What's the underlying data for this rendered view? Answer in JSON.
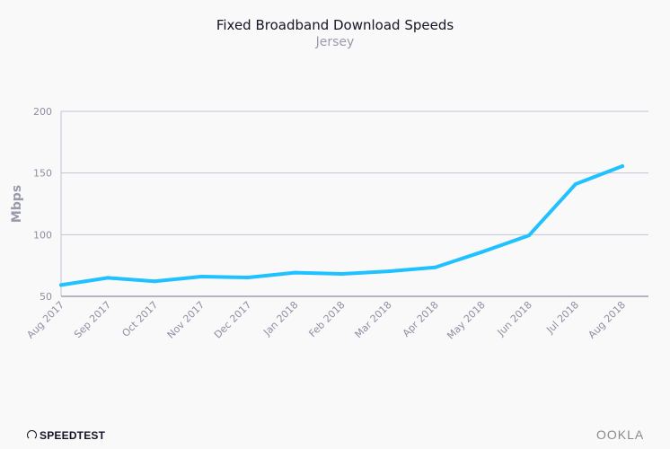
{
  "chart_data": {
    "type": "line",
    "title": "Fixed Broadband Download Speeds",
    "subtitle": "Jersey",
    "xlabel": "",
    "ylabel": "Mbps",
    "ylim": [
      50,
      200
    ],
    "yticks": [
      50,
      100,
      150,
      200
    ],
    "grid": true,
    "categories": [
      "Aug 2017",
      "Sep 2017",
      "Oct 2017",
      "Nov 2017",
      "Dec 2017",
      "Jan 2018",
      "Feb 2018",
      "Mar 2018",
      "Apr 2018",
      "May 2018",
      "Jun 2018",
      "Jul 2018",
      "Aug 2018"
    ],
    "values": [
      59.2,
      65.0,
      62.2,
      66.0,
      65.3,
      69.2,
      68.2,
      70.3,
      73.5,
      86.0,
      99.3,
      141.0,
      155.6
    ],
    "line_color": "#1fc2ff"
  },
  "footer": {
    "brand_left": "SPEEDTEST",
    "brand_right": "OOKLA"
  }
}
